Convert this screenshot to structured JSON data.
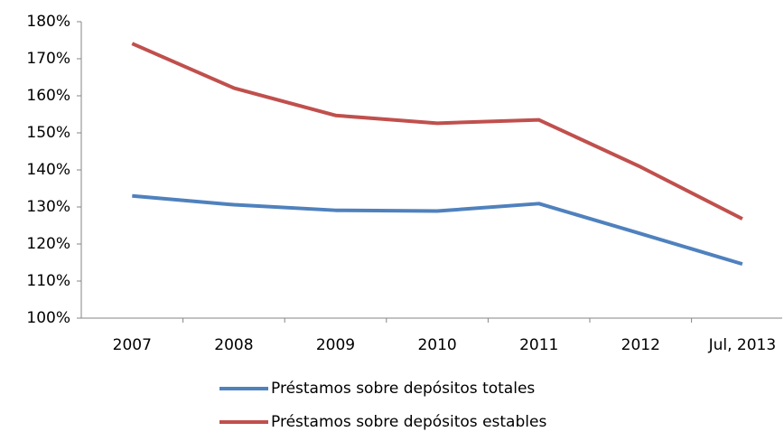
{
  "chart_data": {
    "type": "line",
    "categories": [
      "2007",
      "2008",
      "2009",
      "2010",
      "2011",
      "2012",
      "Jul, 2013"
    ],
    "series": [
      {
        "name": "Préstamos sobre depósitos totales",
        "color": "#4f81bd",
        "values": [
          133,
          130.6,
          129.1,
          128.9,
          130.9,
          122.8,
          114.6
        ]
      },
      {
        "name": "Préstamos sobre depósitos estables",
        "color": "#c0504d",
        "values": [
          174.1,
          162.1,
          154.7,
          152.6,
          153.5,
          140.8,
          126.8
        ]
      }
    ],
    "ylim": [
      100,
      180
    ],
    "yticks": [
      {
        "value": 100,
        "label": "100%"
      },
      {
        "value": 110,
        "label": "110%"
      },
      {
        "value": 120,
        "label": "120%"
      },
      {
        "value": 130,
        "label": "130%"
      },
      {
        "value": 140,
        "label": "140%"
      },
      {
        "value": 150,
        "label": "150%"
      },
      {
        "value": 160,
        "label": "160%"
      },
      {
        "value": 170,
        "label": "170%"
      },
      {
        "value": 180,
        "label": "180%"
      }
    ],
    "grid": false,
    "legend": "bottom"
  }
}
